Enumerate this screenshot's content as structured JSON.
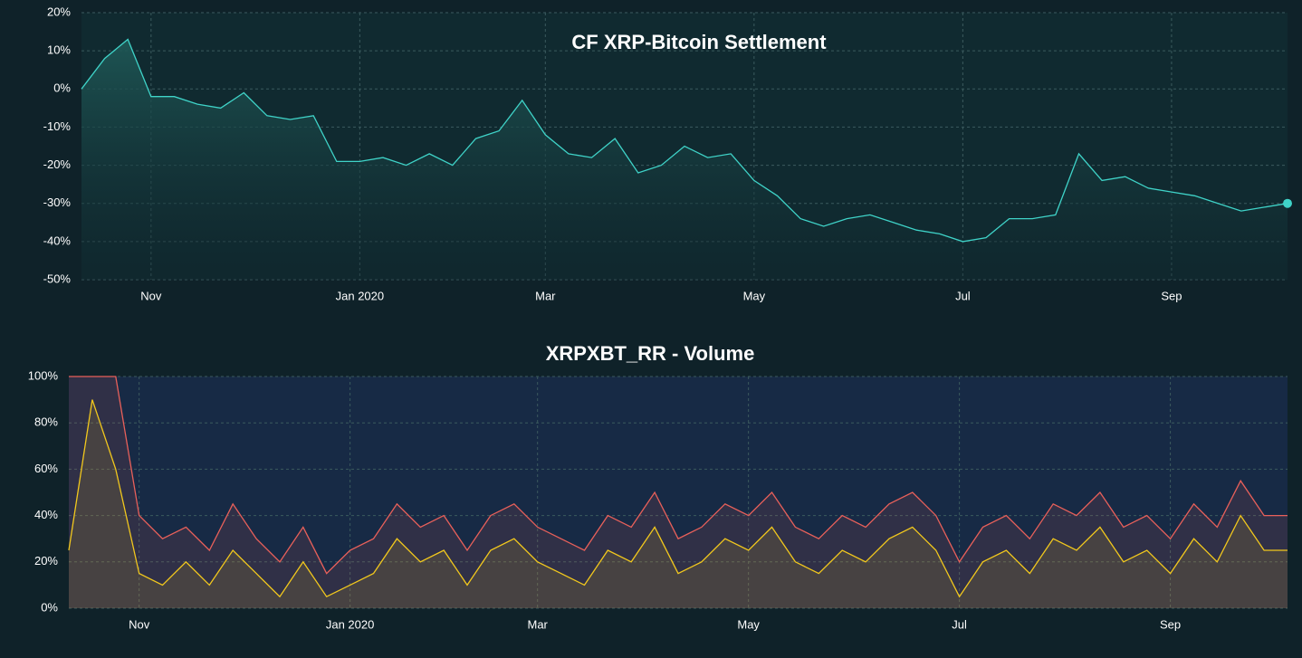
{
  "chart_data": [
    {
      "type": "line",
      "title": "CF XRP-Bitcoin Settlement",
      "categories": [
        null,
        null,
        null,
        "Nov",
        null,
        null,
        null,
        null,
        null,
        null,
        null,
        null,
        "Jan 2020",
        null,
        null,
        null,
        null,
        null,
        null,
        null,
        "Mar",
        null,
        null,
        null,
        null,
        null,
        null,
        null,
        null,
        "May",
        null,
        null,
        null,
        null,
        null,
        null,
        null,
        null,
        "Jul",
        null,
        null,
        null,
        null,
        null,
        null,
        null,
        null,
        "Sep",
        null,
        null,
        null,
        null,
        null
      ],
      "series": [
        {
          "name": "CF XRP-Bitcoin Settlement",
          "color": "#3fd3c8",
          "values": [
            0,
            8,
            13,
            -2,
            -2,
            -4,
            -5,
            -1,
            -7,
            -8,
            -7,
            -19,
            -19,
            -18,
            -20,
            -17,
            -20,
            -13,
            -11,
            -3,
            -12,
            -17,
            -18,
            -13,
            -22,
            -20,
            -15,
            -18,
            -17,
            -24,
            -28,
            -34,
            -36,
            -34,
            -33,
            -35,
            -37,
            -38,
            -40,
            -39,
            -34,
            -34,
            -33,
            -17,
            -24,
            -23,
            -26,
            -27,
            -28,
            -30,
            -32,
            -31,
            -30
          ]
        }
      ],
      "ylim": [
        -50,
        20
      ],
      "yticks": [
        {
          "value": -50,
          "label": "-50%"
        },
        {
          "value": -40,
          "label": "-40%"
        },
        {
          "value": -30,
          "label": "-30%"
        },
        {
          "value": -20,
          "label": "-20%"
        },
        {
          "value": -10,
          "label": "-10%"
        },
        {
          "value": 0,
          "label": "0%"
        },
        {
          "value": 10,
          "label": "10%"
        },
        {
          "value": 20,
          "label": "20%"
        }
      ],
      "grid": true
    },
    {
      "type": "area",
      "title": "XRPXBT_RR - Volume",
      "categories": [
        null,
        null,
        null,
        "Nov",
        null,
        null,
        null,
        null,
        null,
        null,
        null,
        null,
        "Jan 2020",
        null,
        null,
        null,
        null,
        null,
        null,
        null,
        "Mar",
        null,
        null,
        null,
        null,
        null,
        null,
        null,
        null,
        "May",
        null,
        null,
        null,
        null,
        null,
        null,
        null,
        null,
        "Jul",
        null,
        null,
        null,
        null,
        null,
        null,
        null,
        null,
        "Sep",
        null,
        null,
        null,
        null,
        null
      ],
      "series": [
        {
          "name": "XRPXBT_RR",
          "color": "#e8605a",
          "values": [
            100,
            100,
            100,
            40,
            30,
            35,
            25,
            45,
            30,
            20,
            35,
            15,
            25,
            30,
            45,
            35,
            40,
            25,
            40,
            45,
            35,
            30,
            25,
            40,
            35,
            50,
            30,
            35,
            45,
            40,
            50,
            35,
            30,
            40,
            35,
            45,
            50,
            40,
            20,
            35,
            40,
            30,
            45,
            40,
            50,
            35,
            40,
            30,
            45,
            35,
            55,
            40,
            40
          ]
        },
        {
          "name": "Volume",
          "color": "#f2c81d",
          "values": [
            25,
            90,
            60,
            15,
            10,
            20,
            10,
            25,
            15,
            5,
            20,
            5,
            10,
            15,
            30,
            20,
            25,
            10,
            25,
            30,
            20,
            15,
            10,
            25,
            20,
            35,
            15,
            20,
            30,
            25,
            35,
            20,
            15,
            25,
            20,
            30,
            35,
            25,
            5,
            20,
            25,
            15,
            30,
            25,
            35,
            20,
            25,
            15,
            30,
            20,
            40,
            25,
            25
          ]
        }
      ],
      "ylim": [
        0,
        100
      ],
      "yticks": [
        {
          "value": 0,
          "label": "0%"
        },
        {
          "value": 20,
          "label": "20%"
        },
        {
          "value": 40,
          "label": "40%"
        },
        {
          "value": 60,
          "label": "60%"
        },
        {
          "value": 80,
          "label": "80%"
        },
        {
          "value": 100,
          "label": "100%"
        }
      ],
      "grid": true
    }
  ]
}
